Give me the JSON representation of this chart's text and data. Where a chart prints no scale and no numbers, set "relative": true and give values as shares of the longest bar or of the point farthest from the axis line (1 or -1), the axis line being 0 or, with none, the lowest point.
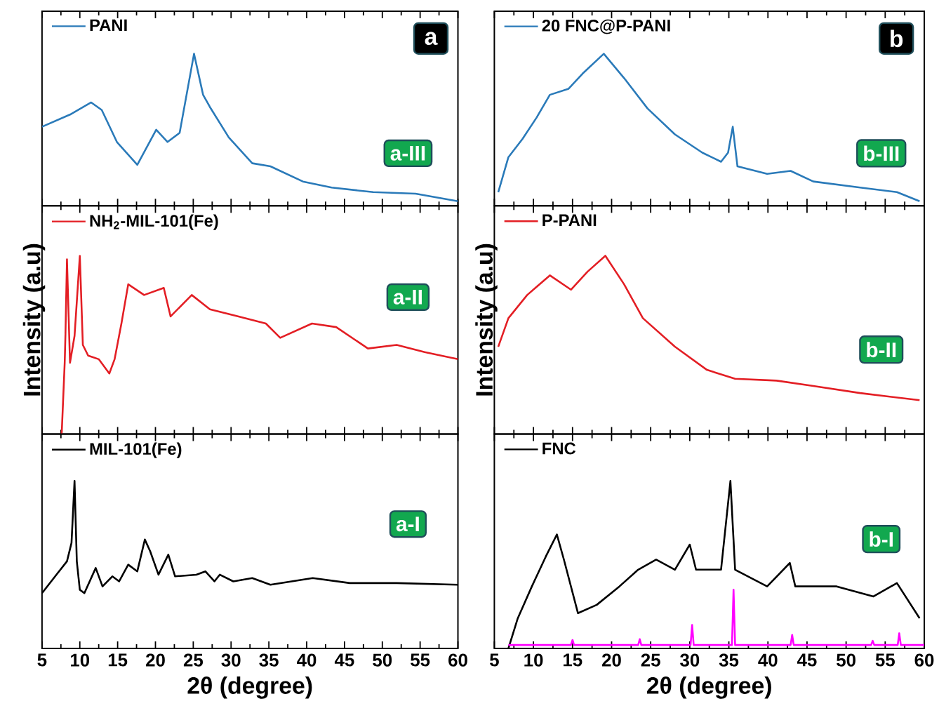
{
  "chart_data": [
    {
      "type": "line",
      "relative": true,
      "xlim": [
        5,
        60
      ],
      "xticks": [
        5,
        10,
        15,
        20,
        25,
        30,
        35,
        40,
        45,
        50,
        55,
        60
      ],
      "tick_labels": false,
      "legend": "top left",
      "annotations": [
        "a",
        "a-III"
      ],
      "series": [
        {
          "name": "PANI",
          "color": "#2a7ab9",
          "x": [
            5,
            8.7,
            11.5,
            12.9,
            14.9,
            17.6,
            20.1,
            21.6,
            23.2,
            25.1,
            26.3,
            27.2,
            29.7,
            32.8,
            35.2,
            39.5,
            43.3,
            48.8,
            54.4,
            60
          ],
          "values": [
            0.52,
            0.6,
            0.68,
            0.63,
            0.42,
            0.27,
            0.5,
            0.42,
            0.48,
            1.0,
            0.73,
            0.65,
            0.45,
            0.28,
            0.26,
            0.16,
            0.12,
            0.09,
            0.08,
            0.03
          ]
        }
      ]
    },
    {
      "type": "line",
      "relative": true,
      "xlim": [
        5,
        60
      ],
      "xticks": [
        5,
        10,
        15,
        20,
        25,
        30,
        35,
        40,
        45,
        50,
        55,
        60
      ],
      "tick_labels": false,
      "legend": "top left",
      "annotations": [
        "b",
        "b-III"
      ],
      "series": [
        {
          "name": "20 FNC@P-PANI",
          "color": "#2a7ab9",
          "x": [
            5.5,
            6.8,
            8.6,
            10.4,
            12.1,
            14.5,
            16.3,
            19.0,
            21.6,
            24.6,
            28.1,
            31.6,
            34.0,
            34.9,
            35.5,
            36.1,
            39.9,
            42.9,
            45.8,
            51.8,
            56.5,
            59.4
          ],
          "values": [
            0.09,
            0.32,
            0.44,
            0.58,
            0.73,
            0.77,
            0.87,
            1.0,
            0.84,
            0.64,
            0.47,
            0.35,
            0.29,
            0.35,
            0.52,
            0.26,
            0.21,
            0.23,
            0.16,
            0.12,
            0.09,
            0.03
          ]
        }
      ]
    },
    {
      "type": "line",
      "relative": true,
      "xlim": [
        5,
        60
      ],
      "xticks": [
        5,
        10,
        15,
        20,
        25,
        30,
        35,
        40,
        45,
        50,
        55,
        60
      ],
      "tick_labels": false,
      "legend": "top left",
      "ylabel": "Intensity (a.u)",
      "annotations": [
        "a-II"
      ],
      "series": [
        {
          "name": "NH$_{2}$-MIL-101(Fe)",
          "color": "#e31e24",
          "x": [
            7.6,
            8.0,
            8.1,
            8.3,
            8.7,
            9.3,
            10.0,
            10.4,
            11.1,
            12.5,
            13.9,
            14.6,
            15.5,
            16.4,
            18.5,
            21.1,
            22.0,
            24.8,
            27.2,
            30.9,
            34.6,
            36.5,
            40.7,
            43.9,
            48.1,
            51.9,
            55.6,
            60
          ],
          "values": [
            0,
            0.4,
            0.56,
            0.98,
            0.4,
            0.55,
            1.0,
            0.5,
            0.44,
            0.42,
            0.34,
            0.42,
            0.62,
            0.84,
            0.78,
            0.82,
            0.66,
            0.78,
            0.7,
            0.66,
            0.62,
            0.54,
            0.62,
            0.6,
            0.48,
            0.5,
            0.46,
            0.42
          ]
        }
      ]
    },
    {
      "type": "line",
      "relative": true,
      "xlim": [
        5,
        60
      ],
      "xticks": [
        5,
        10,
        15,
        20,
        25,
        30,
        35,
        40,
        45,
        50,
        55,
        60
      ],
      "tick_labels": false,
      "legend": "top left",
      "ylabel": "Intensity (a.u)",
      "annotations": [
        "b-II"
      ],
      "series": [
        {
          "name": "P-PANI",
          "color": "#e31e24",
          "x": [
            5.5,
            6.8,
            9.2,
            12.1,
            14.8,
            16.9,
            19.2,
            21.6,
            24.0,
            28.1,
            32.2,
            35.8,
            41.1,
            45.8,
            51.8,
            59.4
          ],
          "values": [
            0.49,
            0.65,
            0.78,
            0.89,
            0.81,
            0.91,
            1.0,
            0.84,
            0.65,
            0.49,
            0.36,
            0.31,
            0.3,
            0.27,
            0.23,
            0.19
          ]
        }
      ]
    },
    {
      "type": "line",
      "relative": true,
      "xlim": [
        5,
        60
      ],
      "xticks": [
        5,
        10,
        15,
        20,
        25,
        30,
        35,
        40,
        45,
        50,
        55,
        60
      ],
      "tick_labels": "x",
      "legend": "top left",
      "xlabel": "2θ (degree)",
      "annotations": [
        "a-I"
      ],
      "series": [
        {
          "name": "MIL-101(Fe)",
          "color": "#000000",
          "x": [
            5.0,
            6.9,
            8.3,
            8.9,
            9.3,
            9.6,
            10.0,
            10.6,
            12.1,
            13.0,
            14.3,
            15.2,
            16.4,
            17.6,
            18.6,
            19.3,
            20.4,
            21.7,
            22.6,
            25.4,
            26.6,
            27.8,
            28.5,
            30.3,
            32.8,
            35.2,
            40.8,
            45.7,
            51.9,
            60
          ],
          "values": [
            0.33,
            0.44,
            0.52,
            0.63,
            1.0,
            0.52,
            0.35,
            0.33,
            0.48,
            0.37,
            0.43,
            0.4,
            0.5,
            0.46,
            0.65,
            0.58,
            0.44,
            0.56,
            0.43,
            0.44,
            0.46,
            0.4,
            0.44,
            0.4,
            0.42,
            0.38,
            0.42,
            0.39,
            0.39,
            0.38
          ]
        }
      ]
    },
    {
      "type": "line",
      "relative": true,
      "xlim": [
        5,
        60
      ],
      "xticks": [
        5,
        10,
        15,
        20,
        25,
        30,
        35,
        40,
        45,
        50,
        55,
        60
      ],
      "tick_labels": "x",
      "legend": "top left",
      "xlabel": "2θ (degree)",
      "annotations": [
        "b-I"
      ],
      "series": [
        {
          "name": "FNC",
          "color": "#000000",
          "x": [
            6.8,
            8.0,
            9.8,
            11.6,
            13.0,
            13.9,
            15.7,
            18.1,
            21.0,
            23.4,
            25.7,
            28.1,
            30.0,
            30.8,
            34.0,
            35.2,
            35.8,
            39.9,
            42.8,
            43.5,
            48.8,
            53.5,
            56.5,
            59.4
          ],
          "values": [
            0,
            0.18,
            0.37,
            0.55,
            0.68,
            0.53,
            0.21,
            0.26,
            0.37,
            0.47,
            0.53,
            0.47,
            0.62,
            0.47,
            0.47,
            1.0,
            0.47,
            0.37,
            0.51,
            0.37,
            0.37,
            0.31,
            0.39,
            0.18
          ]
        },
        {
          "color": "#ff00ff",
          "x": [
            6.8,
            14.8,
            15.0,
            15.2,
            23.4,
            23.6,
            23.8,
            30.1,
            30.3,
            30.5,
            35.4,
            35.6,
            35.8,
            42.9,
            43.1,
            43.3,
            53.2,
            53.4,
            53.6,
            56.6,
            56.8,
            57.0,
            60
          ],
          "values": [
            0.02,
            0.02,
            0.05,
            0.02,
            0.02,
            0.055,
            0.02,
            0.02,
            0.14,
            0.02,
            0.02,
            0.35,
            0.02,
            0.02,
            0.08,
            0.02,
            0.02,
            0.045,
            0.02,
            0.02,
            0.09,
            0.02,
            0.02
          ]
        }
      ]
    }
  ]
}
